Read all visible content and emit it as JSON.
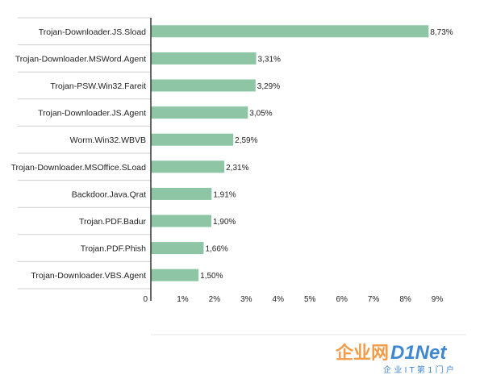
{
  "chart_data": {
    "type": "bar",
    "orientation": "horizontal",
    "categories": [
      "Trojan-Downloader.JS.Sload",
      "Trojan-Downloader.MSWord.Agent",
      "Trojan-PSW.Win32.Fareit",
      "Trojan-Downloader.JS.Agent",
      "Worm.Win32.WBVB",
      "Trojan-Downloader.MSOffice.SLoad",
      "Backdoor.Java.Qrat",
      "Trojan.PDF.Badur",
      "Trojan.PDF.Phish",
      "Trojan-Downloader.VBS.Agent"
    ],
    "values": [
      8.73,
      3.31,
      3.29,
      3.05,
      2.59,
      2.31,
      1.91,
      1.9,
      1.66,
      1.5
    ],
    "value_labels": [
      "8,73%",
      "3,31%",
      "3,29%",
      "3,05%",
      "2,59%",
      "2,31%",
      "1,91%",
      "1,90%",
      "1,66%",
      "1,50%"
    ],
    "xlim": [
      0,
      9
    ],
    "x_ticks": [
      0,
      1,
      2,
      3,
      4,
      5,
      6,
      7,
      8,
      9
    ],
    "x_tick_labels": [
      "0",
      "1%",
      "2%",
      "3%",
      "4%",
      "5%",
      "6%",
      "7%",
      "8%",
      "9%"
    ],
    "title": "",
    "xlabel": "",
    "ylabel": "",
    "grid": false,
    "bar_color": "#8dc5a5",
    "separator_color": "#cfcfcf",
    "axis_color": "#333333",
    "text_color": "#222222"
  },
  "watermark": {
    "brand_cn": "企业网",
    "brand_en": "D1Net",
    "tagline": "企 业 I T 第 1 门 户",
    "color_orange": "#f08a2a",
    "color_blue": "#1e73c8"
  }
}
